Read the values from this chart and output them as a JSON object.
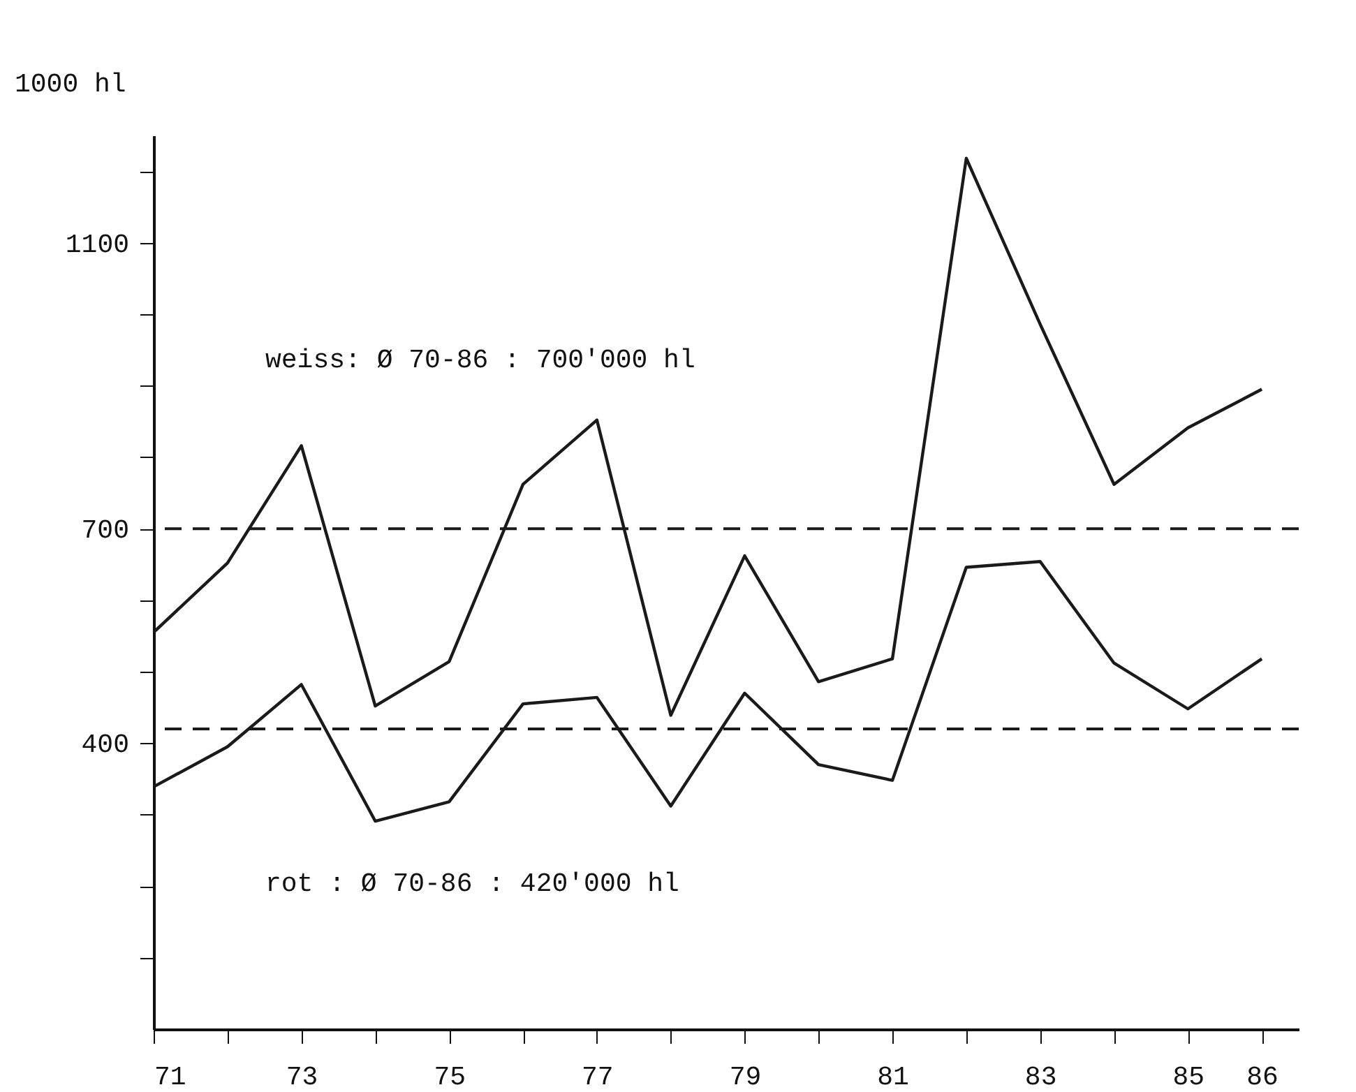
{
  "chart_data": {
    "type": "line",
    "ylabel": "1000 hl",
    "x": [
      71,
      72,
      73,
      74,
      75,
      76,
      77,
      78,
      79,
      80,
      81,
      82,
      83,
      84,
      85,
      86
    ],
    "series": [
      {
        "color": "#1a1a1a",
        "values": [
          555,
          652,
          816,
          452,
          514,
          762,
          852,
          439,
          662,
          486,
          518,
          1218,
          986,
          762,
          841,
          895
        ]
      },
      {
        "color": "#1a1a1a",
        "values": [
          339,
          395,
          482,
          291,
          318,
          455,
          464,
          312,
          470,
          370,
          348,
          646,
          654,
          512,
          448,
          518
        ]
      }
    ],
    "xlim": [
      71,
      86.5
    ],
    "xticks": [
      71,
      {
        "value": 72,
        "label": null
      },
      73,
      {
        "value": 74,
        "label": null
      },
      75,
      {
        "value": 76,
        "label": null
      },
      77,
      {
        "value": 78,
        "label": null
      },
      79,
      {
        "value": 80,
        "label": null
      },
      81,
      {
        "value": 82,
        "label": null
      },
      83,
      {
        "value": 84,
        "label": null
      },
      85,
      86
    ],
    "ylim": [
      0,
      1250
    ],
    "yticks": [
      {
        "value": 100,
        "label": null
      },
      {
        "value": 200,
        "label": null
      },
      {
        "value": 300,
        "label": null
      },
      400,
      {
        "value": 500,
        "label": null
      },
      {
        "value": 600,
        "label": null
      },
      700,
      {
        "value": 800,
        "label": null
      },
      {
        "value": 900,
        "label": null
      },
      {
        "value": 1000,
        "label": null
      },
      1100,
      {
        "value": 1200,
        "label": null
      }
    ],
    "ref_lines": [
      {
        "axis": "y",
        "value": 700,
        "line_style": "dashed"
      },
      {
        "axis": "y",
        "value": 420,
        "line_style": "dashed"
      }
    ],
    "annotations": [
      "weiss: Ø 70-86 : 700'000 hl",
      "rot : Ø 70-86 : 420'000 hl"
    ],
    "grid": false,
    "marker": "none",
    "line_style": "solid"
  }
}
